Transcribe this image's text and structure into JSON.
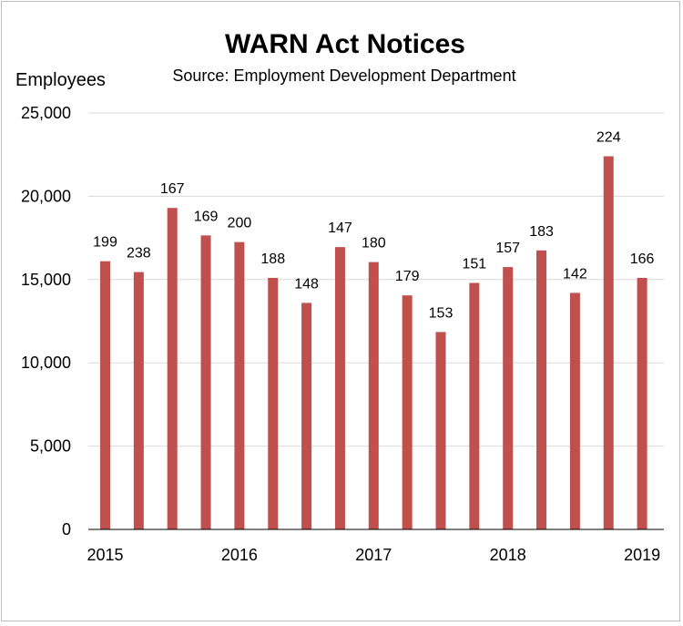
{
  "chart_data": {
    "type": "bar",
    "title": "WARN Act Notices",
    "subtitle": "Source:  Employment Development Department",
    "ylabel": "Employees",
    "xlabel": "",
    "ylim": [
      0,
      25000
    ],
    "yticks": [
      0,
      5000,
      10000,
      15000,
      20000,
      25000
    ],
    "ytick_labels": [
      "0",
      "5,000",
      "10,000",
      "15,000",
      "20,000",
      "25,000"
    ],
    "xtick_labels": [
      {
        "label": "2015",
        "at_bar": 0
      },
      {
        "label": "2016",
        "at_bar": 4
      },
      {
        "label": "2017",
        "at_bar": 8
      },
      {
        "label": "2018",
        "at_bar": 12
      },
      {
        "label": "2019",
        "at_bar": 16
      }
    ],
    "bar_color": "#c0504d",
    "values": [
      16100,
      15450,
      19300,
      17650,
      17250,
      15100,
      13600,
      16950,
      16050,
      14050,
      11850,
      14800,
      15750,
      16750,
      14200,
      22400,
      15100
    ],
    "data_labels": [
      "199",
      "238",
      "167",
      "169",
      "200",
      "188",
      "148",
      "147",
      "180",
      "179",
      "153",
      "151",
      "157",
      "183",
      "142",
      "224",
      "166"
    ]
  }
}
